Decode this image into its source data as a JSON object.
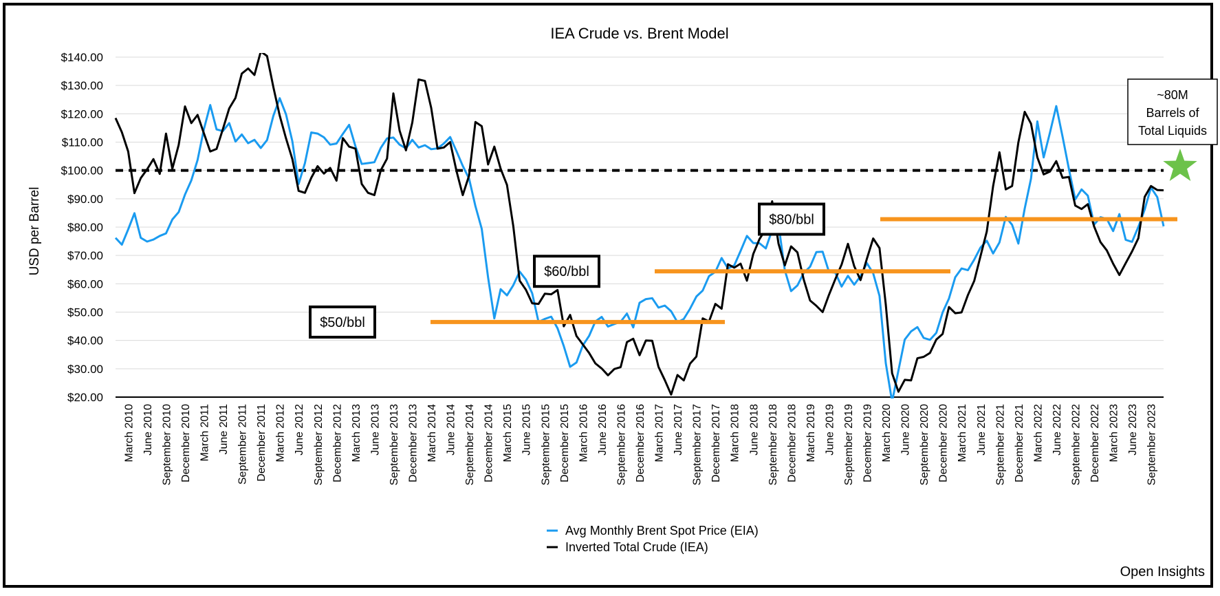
{
  "chart_data": {
    "type": "line",
    "title": "IEA Crude vs. Brent Model",
    "xlabel": "",
    "ylabel": "USD per Barrel",
    "ylim": [
      20,
      140
    ],
    "yticks": [
      "$20.00",
      "$30.00",
      "$40.00",
      "$50.00",
      "$60.00",
      "$70.00",
      "$80.00",
      "$90.00",
      "$100.00",
      "$110.00",
      "$120.00",
      "$130.00",
      "$140.00"
    ],
    "grid": "horizontal",
    "legend_position": "bottom-center",
    "x_tick_labels": [
      "March 2010",
      "June 2010",
      "September 2010",
      "December 2010",
      "March 2011",
      "June 2011",
      "September 2011",
      "December 2011",
      "March 2012",
      "June 2012",
      "September 2012",
      "December 2012",
      "March 2013",
      "June 2013",
      "September 2013",
      "December 2013",
      "March 2014",
      "June 2014",
      "September 2014",
      "December 2014",
      "March 2015",
      "June 2015",
      "September 2015",
      "December 2015",
      "March 2016",
      "June 2016",
      "September 2016",
      "December 2016",
      "March 2017",
      "June 2017",
      "September 2017",
      "December 2017",
      "March 2018",
      "June 2018",
      "September 2018",
      "December 2018",
      "March 2019",
      "June 2019",
      "September 2019",
      "December 2019",
      "March 2020",
      "June 2020",
      "September 2020",
      "December 2020",
      "March 2021",
      "June 2021",
      "September 2021",
      "December 2021",
      "March 2022",
      "June 2022",
      "September 2022",
      "December 2022",
      "March 2023",
      "June 2023",
      "September 2023"
    ],
    "start_month": "2010-01",
    "series": [
      {
        "name": "Avg Monthly Brent Spot Price (EIA)",
        "color": "#1a9bf0",
        "values": [
          76.2,
          73.8,
          79.2,
          84.9,
          76.2,
          74.9,
          75.6,
          76.9,
          77.8,
          82.7,
          85.3,
          91.5,
          96.5,
          103.7,
          114.6,
          123.1,
          114.5,
          113.9,
          116.7,
          110.2,
          112.7,
          109.6,
          110.8,
          107.9,
          110.7,
          119.3,
          125.5,
          119.8,
          110.3,
          95.2,
          102.6,
          113.4,
          113.0,
          111.7,
          109.1,
          109.5,
          112.9,
          116.1,
          108.5,
          102.3,
          102.6,
          102.9,
          107.9,
          111.3,
          111.6,
          109.1,
          107.8,
          110.8,
          108.1,
          108.9,
          107.5,
          107.8,
          109.5,
          111.8,
          106.8,
          101.6,
          97.1,
          87.4,
          79.4,
          62.3,
          47.8,
          58.1,
          55.9,
          59.5,
          64.3,
          61.5,
          56.6,
          46.5,
          47.6,
          48.4,
          44.3,
          38.0,
          30.7,
          32.2,
          38.2,
          41.6,
          46.7,
          48.3,
          44.9,
          45.8,
          46.6,
          49.5,
          44.6,
          53.3,
          54.6,
          54.9,
          51.6,
          52.3,
          50.3,
          46.4,
          47.6,
          51.2,
          55.5,
          57.6,
          62.7,
          64.2,
          69.1,
          65.4,
          66.5,
          71.6,
          76.9,
          74.4,
          74.3,
          72.5,
          79.0,
          81.0,
          64.8,
          57.4,
          59.4,
          63.8,
          66.0,
          71.2,
          71.3,
          64.2,
          63.9,
          59.0,
          62.8,
          59.7,
          62.7,
          67.3,
          63.7,
          55.7,
          32.0,
          18.4,
          29.4,
          40.3,
          43.2,
          44.7,
          40.9,
          40.2,
          42.7,
          49.9,
          54.8,
          62.3,
          65.4,
          64.8,
          68.5,
          72.8,
          75.2,
          70.7,
          74.6,
          83.6,
          80.8,
          74.2,
          86.5,
          97.1,
          117.3,
          104.6,
          113.3,
          122.7,
          111.9,
          100.5,
          89.8,
          93.3,
          91.1,
          80.9,
          83.5,
          82.9,
          78.6,
          84.6,
          75.5,
          74.8,
          80.1,
          86.2,
          94.0,
          90.6,
          80.3
        ]
      },
      {
        "name": "Inverted Total Crude (IEA)",
        "color": "#000000",
        "values": [
          118.5,
          113.5,
          106.7,
          92.0,
          97.3,
          100.4,
          104.0,
          98.8,
          113.0,
          100.6,
          109.0,
          122.6,
          116.7,
          119.6,
          113.1,
          106.7,
          107.6,
          114.6,
          121.9,
          125.6,
          134.2,
          136.0,
          133.7,
          142.0,
          140.4,
          129.4,
          119.4,
          111.3,
          104.0,
          92.8,
          92.1,
          97.4,
          101.5,
          98.9,
          100.9,
          96.4,
          111.4,
          108.4,
          107.7,
          95.2,
          92.1,
          91.3,
          100.0,
          104.2,
          127.2,
          114.0,
          107.1,
          116.9,
          132.1,
          131.6,
          122.1,
          107.7,
          108.1,
          110.0,
          99.8,
          91.3,
          98.2,
          117.1,
          115.6,
          102.1,
          108.4,
          100.6,
          94.9,
          80.3,
          61.1,
          57.9,
          53.1,
          52.9,
          56.5,
          56.3,
          57.8,
          45.0,
          49.0,
          41.6,
          38.6,
          35.6,
          31.9,
          30.1,
          27.7,
          29.9,
          30.6,
          39.4,
          40.6,
          34.8,
          40.0,
          39.9,
          30.7,
          26.0,
          20.9,
          27.8,
          25.9,
          31.8,
          34.3,
          47.8,
          46.7,
          52.9,
          51.2,
          66.9,
          65.7,
          67.1,
          61.1,
          70.5,
          75.8,
          79.3,
          89.1,
          74.2,
          66.5,
          73.2,
          71.1,
          61.5,
          54.1,
          52.2,
          50.0,
          56.1,
          61.6,
          66.8,
          74.1,
          66.2,
          61.3,
          68.8,
          76.0,
          72.6,
          52.7,
          28.4,
          21.9,
          26.1,
          25.9,
          33.7,
          34.2,
          35.6,
          40.3,
          42.3,
          51.8,
          49.6,
          49.9,
          56.0,
          61.0,
          69.8,
          78.5,
          94.5,
          106.4,
          93.3,
          94.5,
          109.9,
          120.7,
          116.5,
          104.6,
          98.6,
          99.6,
          103.3,
          97.4,
          97.7,
          87.6,
          86.4,
          88.1,
          80.2,
          74.7,
          71.8,
          67.1,
          63.1,
          67.3,
          71.4,
          76.1,
          90.7,
          94.5,
          93.1,
          93.0
        ]
      }
    ],
    "reference_line": {
      "value": 100,
      "style": "dashed",
      "color": "#000000"
    },
    "annotations": [
      {
        "label": "$50/bbl",
        "value": 46.5,
        "color": "#f7941d"
      },
      {
        "label": "$60/bbl",
        "value": 64.4,
        "color": "#f7941d"
      },
      {
        "label": "$80/bbl",
        "value": 82.8,
        "color": "#f7941d"
      }
    ],
    "callout": {
      "lines": [
        "~80M",
        "Barrels of",
        "Total Liquids"
      ],
      "star_color": "#6cc24a"
    }
  },
  "credit": "Open Insights"
}
